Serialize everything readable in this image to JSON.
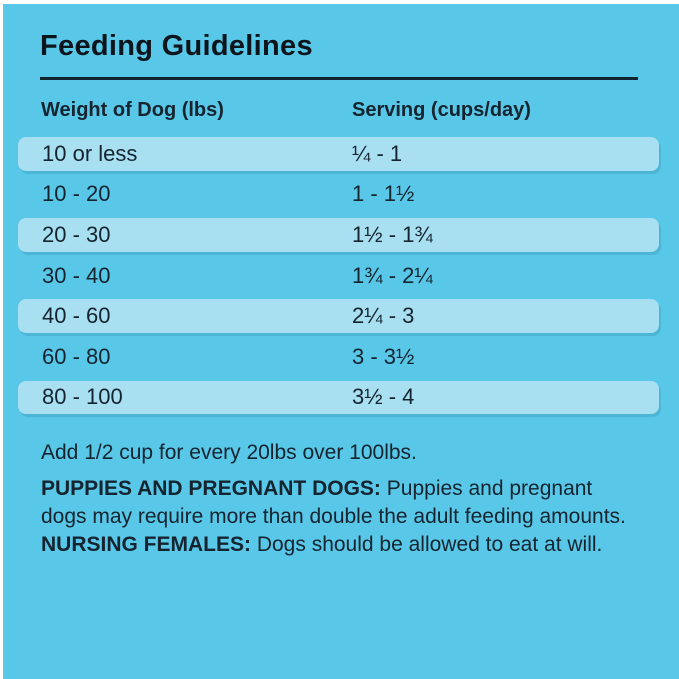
{
  "page": {
    "title": "Feeding Guidelines"
  },
  "table": {
    "headers": {
      "weight": "Weight of Dog (lbs)",
      "serving": "Serving (cups/day)"
    },
    "rows": [
      {
        "weight": "10 or less",
        "serving": "¼ - 1"
      },
      {
        "weight": "10 - 20",
        "serving": "1 - 1½"
      },
      {
        "weight": "20 - 30",
        "serving": "1½ - 1¾"
      },
      {
        "weight": "30 - 40",
        "serving": "1¾ - 2¼"
      },
      {
        "weight": "40 - 60",
        "serving": "2¼ - 3"
      },
      {
        "weight": "60 - 80",
        "serving": "3 - 3½"
      },
      {
        "weight": "80 - 100",
        "serving": "3½ - 4"
      }
    ]
  },
  "notes": {
    "over_limit": "Add 1/2 cup for every 20lbs over 100lbs.",
    "puppies_label": "PUPPIES AND PREGNANT DOGS:",
    "puppies_text": " Puppies and pregnant dogs may require more than double the adult feeding amounts. ",
    "nursing_label": "NURSING FEMALES:",
    "nursing_text": " Dogs should be allowed to eat at will."
  },
  "colors": {
    "background": "#58C7E8",
    "stripe": "#A8DFF1",
    "text": "#15242F",
    "title": "#0C151C",
    "divider": "#0F2431"
  }
}
